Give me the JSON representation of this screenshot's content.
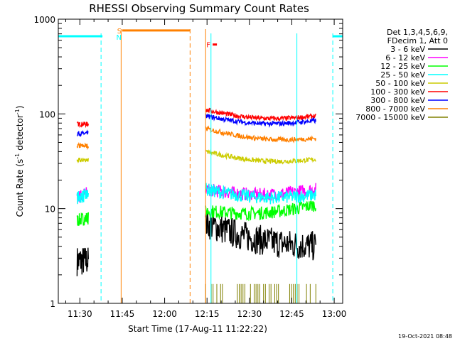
{
  "chart_data": {
    "type": "line",
    "title": "RHESSI Observing Summary Count Rates",
    "xlabel": "Start Time (17-Aug-11 11:22:22)",
    "ylabel": "Count Rate (s",
    "ylabel_sup": "-1",
    "ylabel_rest": " detector",
    "ylabel_sup2": "-1",
    "ylabel_end": ")",
    "yscale": "log",
    "ylim": [
      1,
      1000
    ],
    "xlim_minutes": [
      682.37,
      783.0
    ],
    "x_ticks": [
      {
        "label": "11:30",
        "minutes": 690
      },
      {
        "label": "11:45",
        "minutes": 705
      },
      {
        "label": "12:00",
        "minutes": 720
      },
      {
        "label": "12:15",
        "minutes": 735
      },
      {
        "label": "12:30",
        "minutes": 750
      },
      {
        "label": "12:45",
        "minutes": 765
      },
      {
        "label": "13:00",
        "minutes": 780
      }
    ],
    "y_ticks": [
      {
        "label": "1",
        "value": 1
      },
      {
        "label": "10",
        "value": 10
      },
      {
        "label": "100",
        "value": 100
      },
      {
        "label": "1000",
        "value": 1000
      }
    ],
    "legend": {
      "placement": "right",
      "header": [
        "Det 1,3,4,5,6,9,",
        "FDecim 1, Att 0"
      ],
      "entries": [
        {
          "label": "3 - 6 keV",
          "color": "#000000"
        },
        {
          "label": "6 - 12 keV",
          "color": "#ff00ff"
        },
        {
          "label": "12 - 25 keV",
          "color": "#00ff00"
        },
        {
          "label": "25 - 50 keV",
          "color": "#00ffff"
        },
        {
          "label": "50 - 100 keV",
          "color": "#cccc00"
        },
        {
          "label": "100 - 300 keV",
          "color": "#ff0000"
        },
        {
          "label": "300 - 800 keV",
          "color": "#0000ff"
        },
        {
          "label": "800 - 7000 keV",
          "color": "#ff8000"
        },
        {
          "label": "7000 - 15000 keV",
          "color": "#808000"
        }
      ]
    },
    "markers": {
      "s_label": "S",
      "n_label": "N",
      "f_label": "F",
      "saa_color": "#00ffff",
      "night_color": "#00ffff",
      "flare_color": "#ff8000",
      "f_color": "#ff0000",
      "saa_intervals": [
        [
          682.37,
          698.0
        ],
        [
          779.5,
          783.0
        ]
      ],
      "saa_level": 660,
      "flare_bar": [
        705.0,
        729.0
      ],
      "flare_bar_level": 760,
      "night_dashed": [
        697.5,
        779.5
      ],
      "night_solid": [
        736.4,
        766.8
      ],
      "flare_dashed": [
        729.0
      ],
      "flare_solid": [
        704.6,
        734.5
      ],
      "s_minutes": 704.0,
      "n_minutes": 703.8,
      "f_minutes": 735.5,
      "f_bar": [
        737.0,
        738.5
      ],
      "f_bar_value": 540
    },
    "segments": [
      {
        "x_start": 689.0,
        "x_end": 693.0,
        "levels": [
          {
            "band": "3 - 6 keV",
            "start": 2.8,
            "end": 2.8
          },
          {
            "band": "6 - 12 keV",
            "start": 13,
            "end": 15
          },
          {
            "band": "12 - 25 keV",
            "start": 7.5,
            "end": 8
          },
          {
            "band": "25 - 50 keV",
            "start": 13,
            "end": 14
          },
          {
            "band": "50 - 100 keV",
            "start": 32,
            "end": 33
          },
          {
            "band": "100 - 300 keV",
            "start": 78,
            "end": 78
          },
          {
            "band": "300 - 800 keV",
            "start": 62,
            "end": 62
          },
          {
            "band": "800 - 7000 keV",
            "start": 46,
            "end": 46
          }
        ]
      },
      {
        "x_start": 734.5,
        "x_end": 773.5,
        "levels": [
          {
            "band": "3 - 6 keV",
            "start": 7,
            "end": 4
          },
          {
            "band": "6 - 12 keV",
            "start": 16,
            "end": 16
          },
          {
            "band": "12 - 25 keV",
            "start": 9.5,
            "end": 11
          },
          {
            "band": "25 - 50 keV",
            "start": 16,
            "end": 14
          },
          {
            "band": "50 - 100 keV",
            "start": 40,
            "end": 33
          },
          {
            "band": "100 - 300 keV",
            "start": 110,
            "end": 95
          },
          {
            "band": "300 - 800 keV",
            "start": 95,
            "end": 85
          },
          {
            "band": "800 - 7000 keV",
            "start": 70,
            "end": 55
          },
          {
            "band": "7000 - 15000 keV",
            "start": 1.6,
            "end": 1.6
          }
        ]
      }
    ]
  },
  "footer": {
    "timestamp": "19-Oct-2021 08:48"
  }
}
